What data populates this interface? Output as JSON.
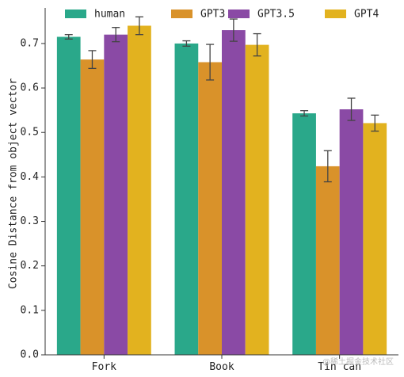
{
  "chart_data": {
    "type": "bar",
    "title": "",
    "xlabel": "",
    "ylabel": "Cosine Distance from object vector",
    "ylim": [
      0,
      0.78
    ],
    "yticks": [
      "0.0",
      "0.1",
      "0.2",
      "0.3",
      "0.4",
      "0.5",
      "0.6",
      "0.7"
    ],
    "categories": [
      "Fork",
      "Book",
      "Tin can"
    ],
    "legend_position": "top",
    "grid": false,
    "series": [
      {
        "name": "human",
        "color": "#2aa88a",
        "values": [
          0.715,
          0.7,
          0.543
        ],
        "errors": [
          0.005,
          0.006,
          0.006
        ]
      },
      {
        "name": "GPT3",
        "color": "#d9922a",
        "values": [
          0.664,
          0.658,
          0.424
        ],
        "errors": [
          0.02,
          0.04,
          0.035
        ]
      },
      {
        "name": "GPT3.5",
        "color": "#8a4aa5",
        "values": [
          0.72,
          0.73,
          0.552
        ],
        "errors": [
          0.016,
          0.025,
          0.025
        ]
      },
      {
        "name": "GPT4",
        "color": "#e2b21f",
        "values": [
          0.74,
          0.697,
          0.521
        ],
        "errors": [
          0.02,
          0.025,
          0.018
        ]
      }
    ]
  },
  "watermark": "@稀土掘金技术社区"
}
